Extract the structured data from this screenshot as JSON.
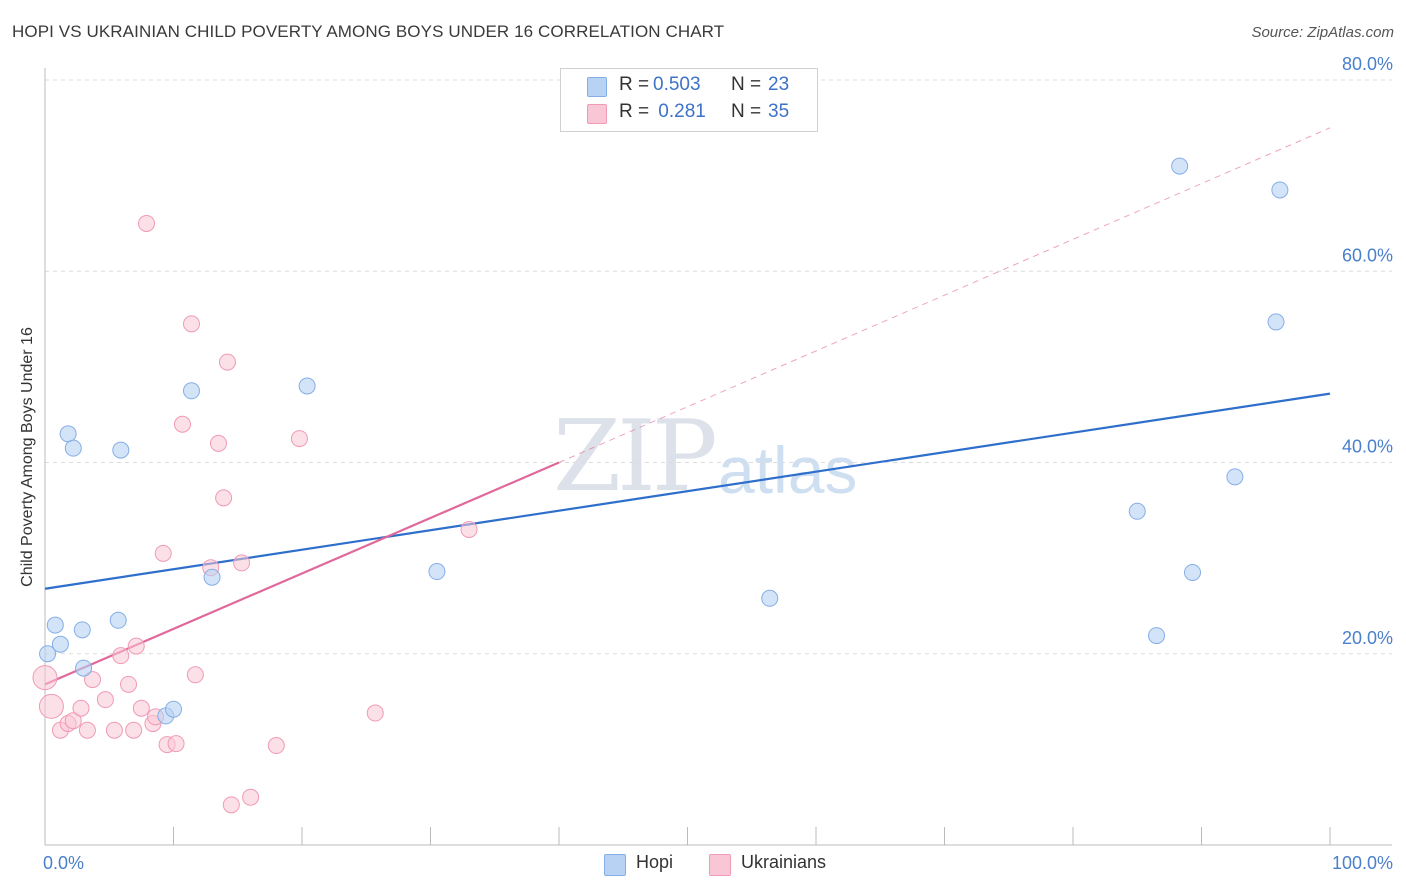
{
  "header": {
    "title": "HOPI VS UKRAINIAN CHILD POVERTY AMONG BOYS UNDER 16 CORRELATION CHART",
    "source": "Source: ZipAtlas.com"
  },
  "watermark": {
    "zip": "ZIP",
    "atlas": "atlas"
  },
  "legend": {
    "rows": [
      {
        "r_label": "R =",
        "r_value": "0.503",
        "n_label": "N =",
        "n_value": "23"
      },
      {
        "r_label": "R =",
        "r_value": " 0.281",
        "n_label": "N =",
        "n_value": "35"
      }
    ]
  },
  "bottom_legend": {
    "hopi": "Hopi",
    "ukrainians": "Ukrainians"
  },
  "colors": {
    "hopi_fill": "#b8d2f3",
    "hopi_stroke": "#85aee6",
    "hopi_line": "#2f6fcc",
    "ukr_fill": "#f9c6d6",
    "ukr_stroke": "#f09ab5",
    "ukr_line": "#e0689a",
    "grid": "#dcdcdc",
    "tick_label": "#4a7fcc"
  },
  "chart_data": {
    "type": "scatter",
    "title": "HOPI VS UKRAINIAN CHILD POVERTY AMONG BOYS UNDER 16 CORRELATION CHART",
    "xlabel": "",
    "ylabel": "Child Poverty Among Boys Under 16",
    "xlim": [
      0,
      100
    ],
    "ylim": [
      0,
      80
    ],
    "x_tick_labels": [
      "0.0%",
      "100.0%"
    ],
    "y_ticks": [
      20,
      40,
      60,
      80
    ],
    "y_tick_labels": [
      "20.0%",
      "40.0%",
      "60.0%",
      "80.0%"
    ],
    "grid": true,
    "legend_position": "top-center",
    "series": [
      {
        "name": "Hopi",
        "r": 0.503,
        "n": 23,
        "points": [
          [
            0.2,
            20.0
          ],
          [
            0.8,
            23.0
          ],
          [
            1.2,
            21.0
          ],
          [
            1.8,
            43.0
          ],
          [
            2.2,
            41.5
          ],
          [
            2.9,
            22.5
          ],
          [
            3.0,
            18.5
          ],
          [
            5.7,
            23.5
          ],
          [
            5.9,
            41.3
          ],
          [
            9.4,
            13.5
          ],
          [
            10.0,
            14.2
          ],
          [
            11.4,
            47.5
          ],
          [
            13.0,
            28.0
          ],
          [
            20.4,
            48.0
          ],
          [
            30.5,
            28.6
          ],
          [
            56.4,
            25.8
          ],
          [
            85.0,
            34.9
          ],
          [
            86.5,
            21.9
          ],
          [
            88.3,
            71.0
          ],
          [
            89.3,
            28.5
          ],
          [
            92.6,
            38.5
          ],
          [
            95.8,
            54.7
          ],
          [
            96.1,
            68.5
          ]
        ],
        "trend": {
          "x": [
            0,
            100
          ],
          "y": [
            26.8,
            47.2
          ]
        }
      },
      {
        "name": "Ukrainians",
        "r": 0.281,
        "n": 35,
        "points": [
          [
            0.0,
            17.5
          ],
          [
            0.5,
            14.5
          ],
          [
            1.2,
            12.0
          ],
          [
            1.8,
            12.7
          ],
          [
            2.2,
            13.0
          ],
          [
            2.8,
            14.3
          ],
          [
            3.3,
            12.0
          ],
          [
            3.7,
            17.3
          ],
          [
            4.7,
            15.2
          ],
          [
            5.4,
            12.0
          ],
          [
            5.9,
            19.8
          ],
          [
            6.5,
            16.8
          ],
          [
            6.9,
            12.0
          ],
          [
            7.1,
            20.8
          ],
          [
            7.5,
            14.3
          ],
          [
            7.9,
            65.0
          ],
          [
            8.4,
            12.7
          ],
          [
            8.6,
            13.4
          ],
          [
            9.2,
            30.5
          ],
          [
            9.5,
            10.5
          ],
          [
            10.2,
            10.6
          ],
          [
            10.7,
            44.0
          ],
          [
            11.4,
            54.5
          ],
          [
            11.7,
            17.8
          ],
          [
            12.9,
            29.0
          ],
          [
            13.5,
            42.0
          ],
          [
            13.9,
            36.3
          ],
          [
            14.2,
            50.5
          ],
          [
            14.5,
            4.2
          ],
          [
            15.3,
            29.5
          ],
          [
            16.0,
            5.0
          ],
          [
            18.0,
            10.4
          ],
          [
            19.8,
            42.5
          ],
          [
            25.7,
            13.8
          ],
          [
            33.0,
            33.0
          ]
        ],
        "trend": {
          "x": [
            0,
            40
          ],
          "y": [
            16.8,
            40.0
          ]
        },
        "trend_extension": {
          "x": [
            40,
            100
          ],
          "y": [
            40.0,
            75.0
          ]
        }
      }
    ]
  }
}
